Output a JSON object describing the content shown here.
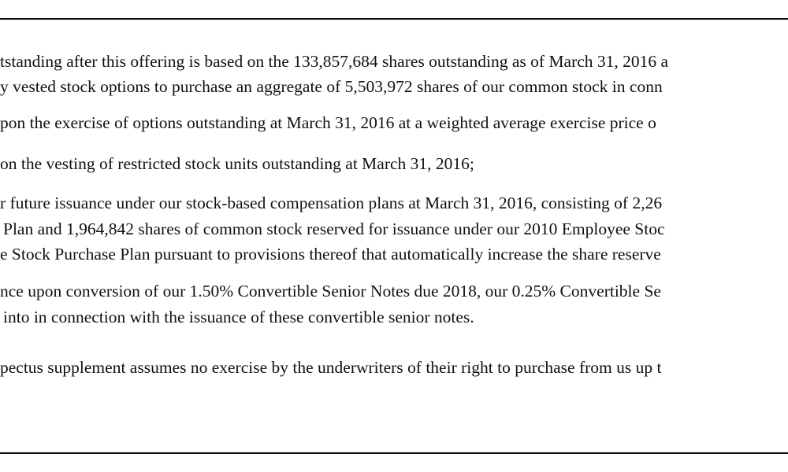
{
  "document": {
    "lines": [
      "tstanding after this offering is based on the 133,857,684 shares outstanding as of March 31, 2016 a",
      "y vested stock options to purchase an aggregate of 5,503,972 shares of our common stock in conn",
      "pon the exercise of options outstanding at March 31, 2016 at a weighted average exercise price o",
      "on the vesting of restricted stock units outstanding at March 31, 2016;",
      "r future issuance under our stock-based compensation plans at March 31, 2016, consisting of 2,26",
      "Plan and 1,964,842 shares of common stock reserved for issuance under our 2010 Employee Stoc",
      "e Stock Purchase Plan pursuant to provisions thereof that automatically increase the share reserve",
      "nce upon conversion of our 1.50% Convertible Senior Notes due 2018, our 0.25% Convertible Se",
      "into in connection with the issuance of these convertible senior notes.",
      "pectus supplement assumes no exercise by the underwriters of their right to purchase from us up t"
    ]
  }
}
